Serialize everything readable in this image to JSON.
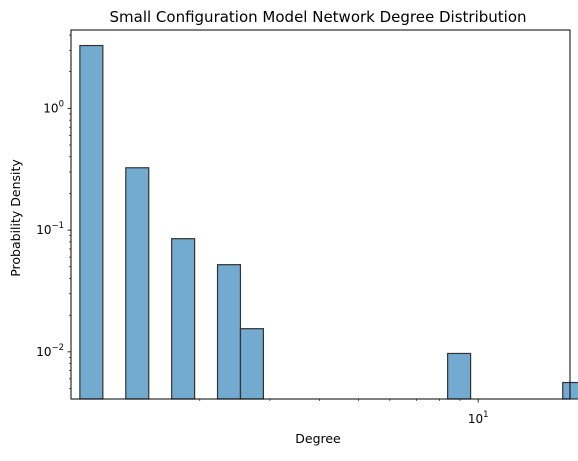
{
  "chart_data": {
    "type": "bar",
    "title": "Small Configuration Model Network Degree Distribution",
    "xlabel": "Degree",
    "ylabel": "Probability Density",
    "x_scale": "log",
    "y_scale": "log",
    "xlim": [
      0.95,
      17.0
    ],
    "ylim": [
      0.0041,
      4.4
    ],
    "grid": false,
    "legend": "none",
    "bar_color": "#5b9bc8",
    "bar_edge_color": "#333333",
    "bar_opacity": 0.85,
    "bins": [
      {
        "x0": 1.0,
        "x1": 1.142,
        "value": 3.28
      },
      {
        "x0": 1.304,
        "x1": 1.489,
        "value": 0.325
      },
      {
        "x0": 1.7,
        "x1": 1.941,
        "value": 0.085
      },
      {
        "x0": 2.216,
        "x1": 2.53,
        "value": 0.052
      },
      {
        "x0": 2.53,
        "x1": 2.889,
        "value": 0.0155
      },
      {
        "x0": 8.38,
        "x1": 9.57,
        "value": 0.0097
      },
      {
        "x0": 16.3,
        "x1": 18.6,
        "value": 0.0056
      }
    ],
    "x_ticks": [
      {
        "value": 10,
        "base": "10",
        "exp": "1"
      }
    ],
    "y_ticks": [
      {
        "value": 1,
        "base": "10",
        "exp": "0"
      },
      {
        "value": 0.1,
        "base": "10",
        "exp": "−1"
      },
      {
        "value": 0.01,
        "base": "10",
        "exp": "−2"
      }
    ]
  }
}
